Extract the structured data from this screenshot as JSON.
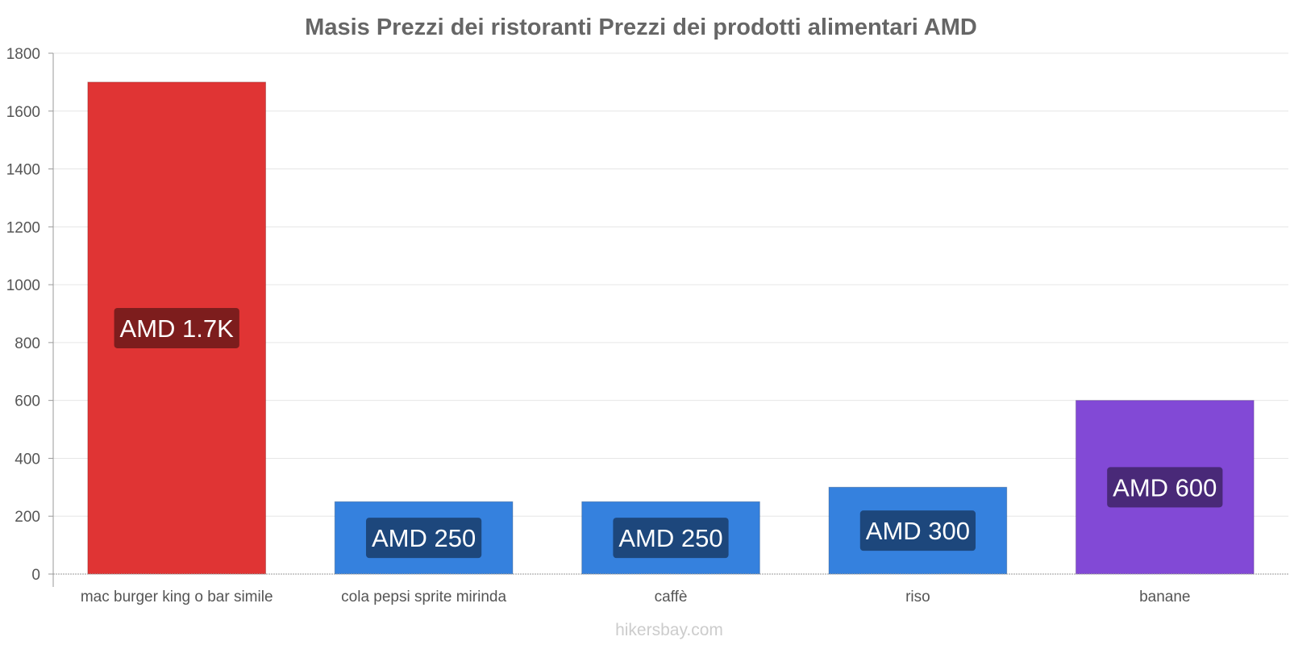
{
  "chart_data": {
    "type": "bar",
    "title": "Masis Prezzi dei ristoranti Prezzi dei prodotti alimentari AMD",
    "categories": [
      "mac burger king o bar simile",
      "cola pepsi sprite mirinda",
      "caffè",
      "riso",
      "banane"
    ],
    "values": [
      1700,
      250,
      250,
      300,
      600
    ],
    "data_labels": [
      "AMD 1.7K",
      "AMD 250",
      "AMD 250",
      "AMD 300",
      "AMD 600"
    ],
    "colors": [
      "#e03434",
      "#3581de",
      "#3581de",
      "#3581de",
      "#8249d6"
    ],
    "label_colors": [
      "#6e1a1a",
      "#1a3f6e",
      "#1a3f6e",
      "#1a3f6e",
      "#41246b"
    ],
    "yticks": [
      0,
      200,
      400,
      600,
      800,
      1000,
      1200,
      1400,
      1600,
      1800
    ],
    "ylim": [
      0,
      1800
    ],
    "xlabel": "",
    "ylabel": "",
    "grid": true
  },
  "footer": {
    "watermark": "hikersbay.com"
  }
}
